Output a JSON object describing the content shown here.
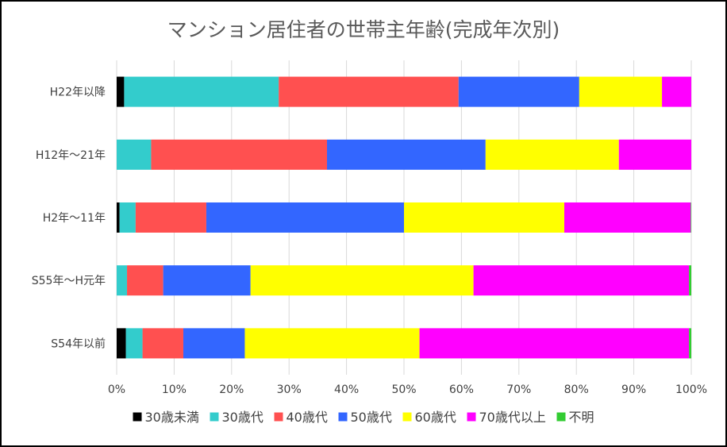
{
  "chart_data": {
    "type": "bar",
    "orientation": "horizontal",
    "stacked": "percent",
    "title": "マンション居住者の世帯主年齢(完成年次別)",
    "categories": [
      "H22年以降",
      "H12年〜21年",
      "H2年〜11年",
      "S55年〜H元年",
      "S54年以前"
    ],
    "series": [
      {
        "name": "30歳未満",
        "color": "#000000",
        "values": [
          1.3,
          0.0,
          0.5,
          0.0,
          1.6
        ]
      },
      {
        "name": "30歳代",
        "color": "#33CCCC",
        "values": [
          26.9,
          6.0,
          2.8,
          1.8,
          2.9
        ]
      },
      {
        "name": "40歳代",
        "color": "#FF5050",
        "values": [
          31.3,
          30.6,
          12.3,
          6.3,
          7.1
        ]
      },
      {
        "name": "50歳代",
        "color": "#3366FF",
        "values": [
          21.0,
          27.6,
          34.4,
          15.2,
          10.7
        ]
      },
      {
        "name": "60歳代",
        "color": "#FFFF00",
        "values": [
          14.4,
          23.2,
          27.9,
          38.8,
          30.4
        ]
      },
      {
        "name": "70歳代以上",
        "color": "#FF00FF",
        "values": [
          5.1,
          12.6,
          22.0,
          37.5,
          46.9
        ]
      },
      {
        "name": "不明",
        "color": "#33CC33",
        "values": [
          0.0,
          0.0,
          0.1,
          0.4,
          0.4
        ]
      }
    ],
    "xlim": [
      0,
      100
    ],
    "xticks": [
      "0%",
      "10%",
      "20%",
      "30%",
      "40%",
      "50%",
      "60%",
      "70%",
      "80%",
      "90%",
      "100%"
    ],
    "grid": true,
    "legend_position": "bottom"
  }
}
